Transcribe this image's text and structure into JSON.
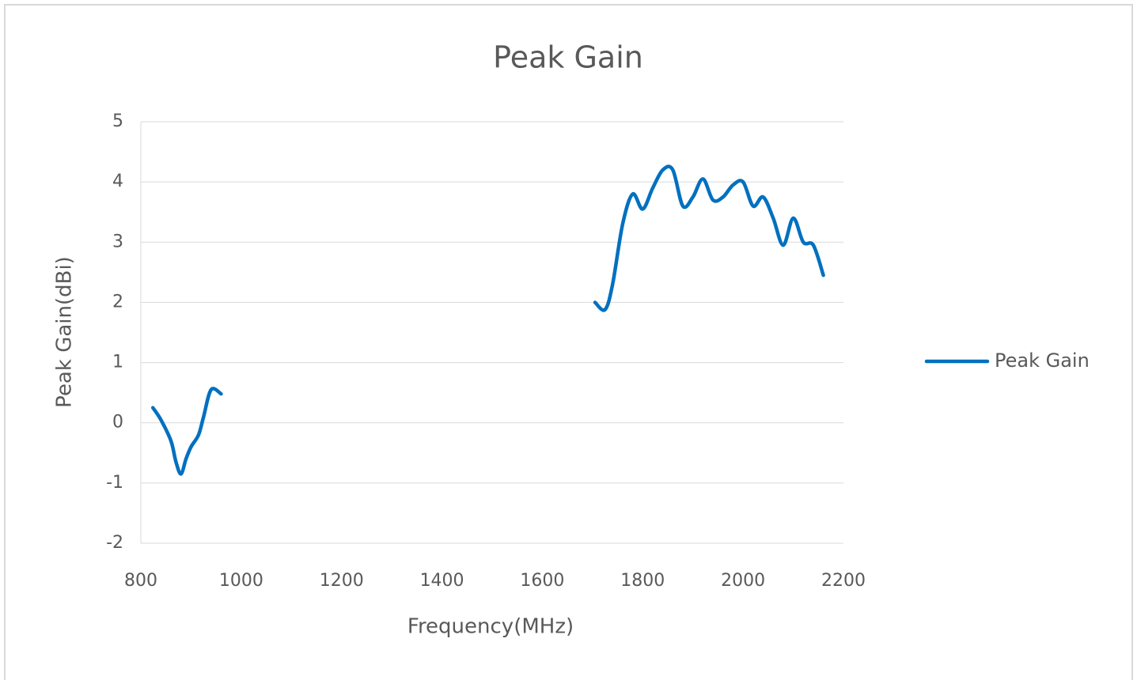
{
  "chart_data": {
    "type": "line",
    "title": "Peak Gain",
    "x_label": "Frequency(MHz)",
    "y_label": "Peak Gain(dBi)",
    "x": [
      824,
      840,
      860,
      870,
      880,
      890,
      900,
      915,
      925,
      940,
      960,
      null,
      1705,
      1725,
      1740,
      1760,
      1780,
      1800,
      1820,
      1840,
      1860,
      1880,
      1900,
      1920,
      1940,
      1960,
      1980,
      2000,
      2020,
      2040,
      2060,
      2080,
      2100,
      2120,
      2140,
      2160
    ],
    "series": [
      {
        "name": "Peak Gain",
        "color": "#0070c0",
        "values": [
          0.25,
          0.05,
          -0.3,
          -0.65,
          -0.85,
          -0.6,
          -0.4,
          -0.2,
          0.1,
          0.55,
          0.48,
          null,
          2.0,
          1.88,
          2.3,
          3.3,
          3.8,
          3.55,
          3.9,
          4.2,
          4.2,
          3.6,
          3.75,
          4.05,
          3.7,
          3.75,
          3.95,
          4.0,
          3.6,
          3.75,
          3.4,
          2.95,
          3.4,
          3.0,
          2.95,
          2.45
        ]
      }
    ],
    "xlim": [
      800,
      2200
    ],
    "xticks": [
      800,
      1000,
      1200,
      1400,
      1600,
      1800,
      2000,
      2200
    ],
    "ylim": [
      -2,
      5
    ],
    "yticks": [
      -2,
      -1,
      0,
      1,
      2,
      3,
      4,
      5
    ],
    "grid": true,
    "legend": "right"
  }
}
